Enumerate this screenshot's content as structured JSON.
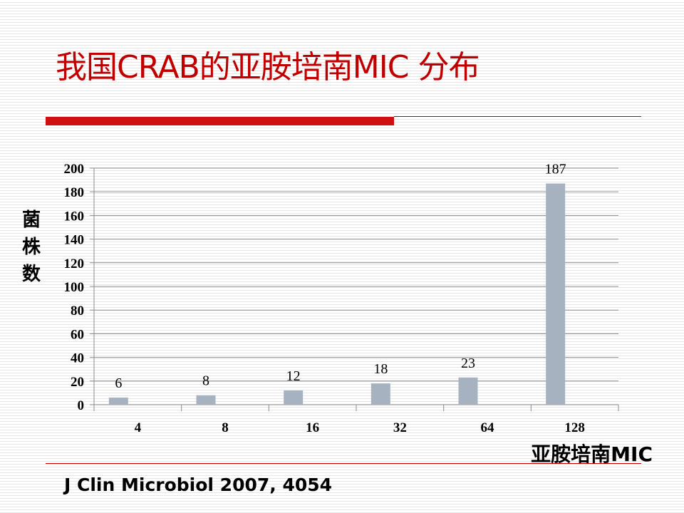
{
  "slide": {
    "title": "我国CRAB的亚胺培南MIC 分布",
    "citation": "J Clin Microbiol 2007, 4054"
  },
  "colors": {
    "title": "#c00000",
    "accent_bar": "#d01010",
    "bar_fill": "#a6b2c0",
    "grid": "#8c8c8c"
  },
  "chart_data": {
    "type": "bar",
    "title": "",
    "xlabel": "亚胺培南MIC",
    "ylabel": "菌株数",
    "categories": [
      "4",
      "8",
      "16",
      "32",
      "64",
      "128"
    ],
    "values": [
      6,
      8,
      12,
      18,
      23,
      187
    ],
    "data_labels": [
      "6",
      "8",
      "12",
      "18",
      "23",
      "187"
    ],
    "ylim": [
      0,
      200
    ],
    "yticks": [
      0,
      20,
      40,
      60,
      80,
      100,
      120,
      140,
      160,
      180,
      200
    ],
    "grid": true,
    "legend": false
  }
}
